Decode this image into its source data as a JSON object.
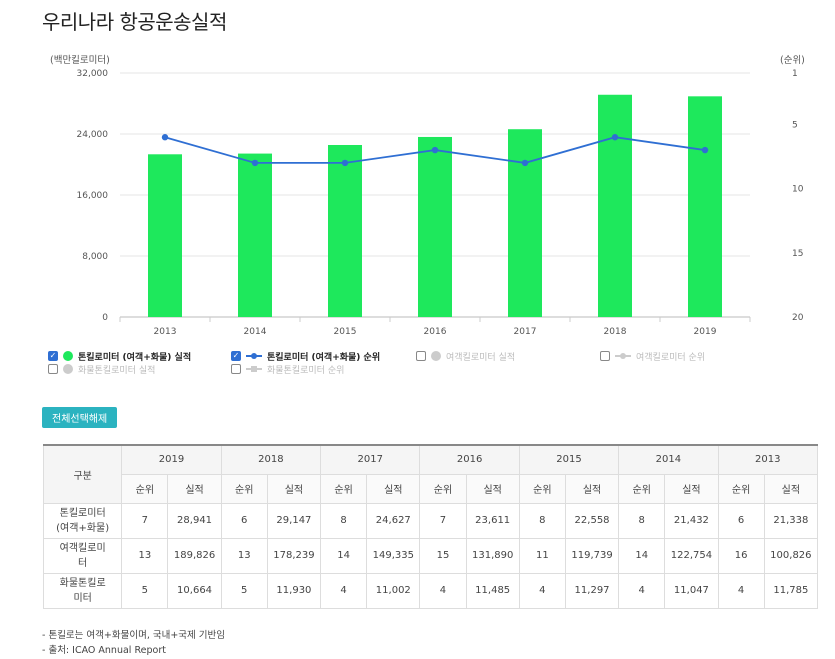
{
  "page": {
    "title": "우리나라 항공운송실적"
  },
  "chart_data": {
    "type": "bar",
    "categories": [
      "2013",
      "2014",
      "2015",
      "2016",
      "2017",
      "2018",
      "2019"
    ],
    "series": [
      {
        "name": "톤킬로미터 (여객+화물) 실적",
        "type": "bar",
        "axis": "left",
        "color": "#1ee85c",
        "values": [
          21338,
          21432,
          22558,
          23611,
          24627,
          29147,
          28941
        ]
      },
      {
        "name": "톤킬로미터 (여객+화물) 순위",
        "type": "line",
        "axis": "right",
        "color": "#2f6fd3",
        "values": [
          6,
          8,
          8,
          7,
          8,
          6,
          7
        ]
      }
    ],
    "ylabel": "(백만킬로미터)",
    "y2label": "(순위)",
    "ylim": [
      0,
      32000
    ],
    "yticks": [
      "0",
      "8,000",
      "16,000",
      "24,000",
      "32,000"
    ],
    "y2lim": [
      1,
      20
    ],
    "y2ticks": [
      "1",
      "5",
      "10",
      "15",
      "20"
    ],
    "y2_reversed": true,
    "grid": true
  },
  "legend": [
    {
      "label": "톤킬로미터 (여객+화물) 실적",
      "checked": true,
      "marker": "dot",
      "color": "#1ee85c"
    },
    {
      "label": "톤킬로미터 (여객+화물) 순위",
      "checked": true,
      "marker": "line",
      "color": "#2f6fd3"
    },
    {
      "label": "여객킬로미터 실적",
      "checked": false,
      "marker": "dot",
      "color": "#cccccc"
    },
    {
      "label": "여객킬로미터 순위",
      "checked": false,
      "marker": "line",
      "color": "#cccccc"
    },
    {
      "label": "화물톤킬로미터 실적",
      "checked": false,
      "marker": "dot",
      "color": "#cccccc"
    },
    {
      "label": "화물톤킬로미터 순위",
      "checked": false,
      "marker": "line-square",
      "color": "#cccccc"
    }
  ],
  "controls": {
    "toggle_all_label": "전체선택해제"
  },
  "table": {
    "corner_label": "구분",
    "years": [
      "2019",
      "2018",
      "2017",
      "2016",
      "2015",
      "2014",
      "2013"
    ],
    "sub_headers": [
      "순위",
      "실적"
    ],
    "rows": [
      {
        "label": "톤킬로미터\n(여객+화물)",
        "cells": [
          "7",
          "28,941",
          "6",
          "29,147",
          "8",
          "24,627",
          "7",
          "23,611",
          "8",
          "22,558",
          "8",
          "21,432",
          "6",
          "21,338"
        ]
      },
      {
        "label": "여객킬로미\n터",
        "cells": [
          "13",
          "189,826",
          "13",
          "178,239",
          "14",
          "149,335",
          "15",
          "131,890",
          "11",
          "119,739",
          "14",
          "122,754",
          "16",
          "100,826"
        ]
      },
      {
        "label": "화물톤킬로\n미터",
        "cells": [
          "5",
          "10,664",
          "5",
          "11,930",
          "4",
          "11,002",
          "4",
          "11,485",
          "4",
          "11,297",
          "4",
          "11,047",
          "4",
          "11,785"
        ]
      }
    ]
  },
  "notes": [
    "- 톤킬로는 여객+화물이며, 국내+국제 기반임",
    "- 출처: ICAO Annual Report"
  ]
}
